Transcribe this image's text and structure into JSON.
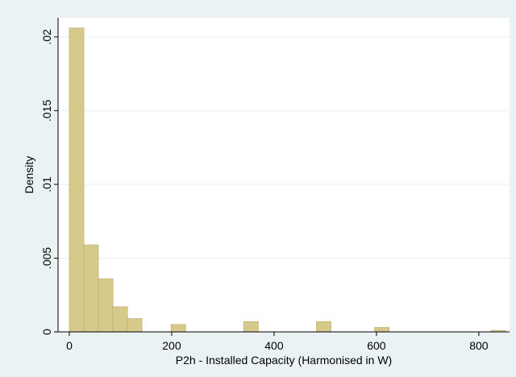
{
  "chart_data": {
    "type": "bar",
    "title": "",
    "xlabel": "P2h - Installed Capacity (Harmonised in W)",
    "ylabel": "Density",
    "xlim": [
      -22,
      860
    ],
    "ylim": [
      0,
      0.0213
    ],
    "x_ticks": [
      0,
      200,
      400,
      600,
      800
    ],
    "x_tick_labels": [
      "0",
      "200",
      "400",
      "600",
      "800"
    ],
    "y_ticks": [
      0,
      0.005,
      0.01,
      0.015,
      0.02
    ],
    "y_tick_labels": [
      "0",
      ".005",
      ".01",
      ".015",
      ".02"
    ],
    "bin_width": 28.4,
    "bins": [
      {
        "x0": 0.0,
        "x1": 28.4,
        "density": 0.0206
      },
      {
        "x0": 28.4,
        "x1": 56.8,
        "density": 0.0059
      },
      {
        "x0": 56.8,
        "x1": 85.2,
        "density": 0.0036
      },
      {
        "x0": 85.2,
        "x1": 113.6,
        "density": 0.0017
      },
      {
        "x0": 113.6,
        "x1": 142.0,
        "density": 0.0009
      },
      {
        "x0": 198.8,
        "x1": 227.2,
        "density": 0.0005
      },
      {
        "x0": 340.8,
        "x1": 369.2,
        "density": 0.0007
      },
      {
        "x0": 482.8,
        "x1": 511.2,
        "density": 0.0007
      },
      {
        "x0": 596.4,
        "x1": 624.8,
        "density": 0.0003
      },
      {
        "x0": 823.6,
        "x1": 852.0,
        "density": 0.0001
      }
    ],
    "grid": true,
    "colors": {
      "background": "#eaf2f3",
      "plot_background": "#ffffff",
      "bar_fill": "#d6c98c",
      "bar_stroke": "#c2b376",
      "grid": "#eaf2f3",
      "axis": "#000000"
    }
  }
}
